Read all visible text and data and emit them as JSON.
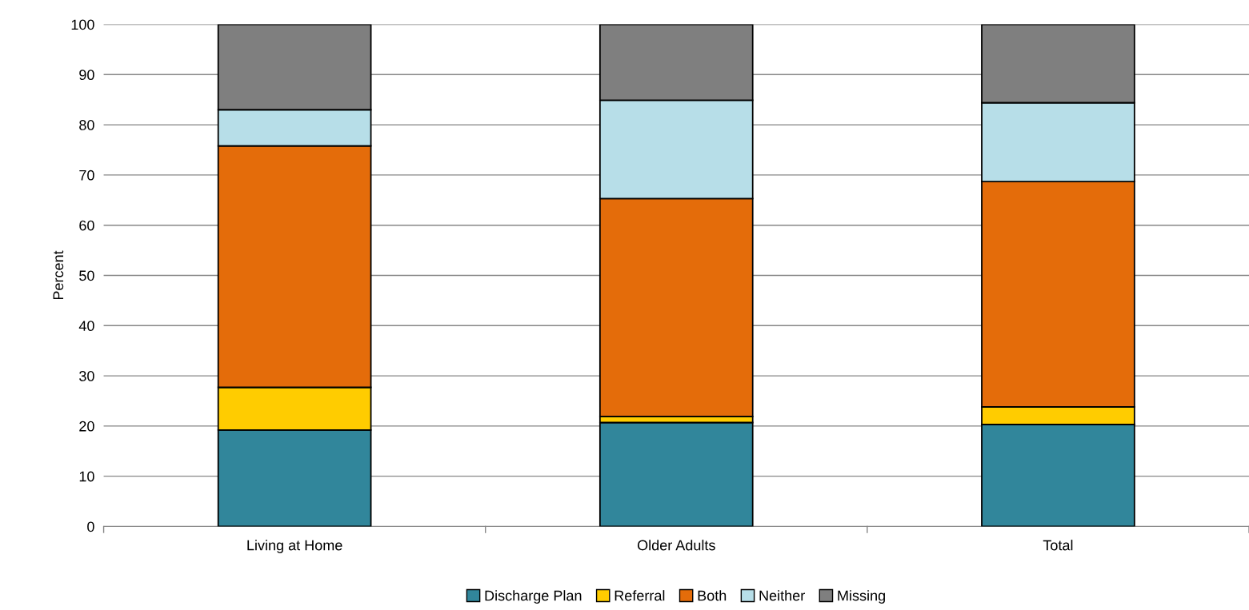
{
  "chart_data": {
    "type": "bar",
    "stacked": true,
    "ylabel": "Percent",
    "categories": [
      "Living at Home",
      "Older Adults",
      "Total"
    ],
    "series": [
      {
        "name": "Discharge Plan",
        "color": "#31869b",
        "values": [
          19.2,
          20.7,
          20.3
        ]
      },
      {
        "name": "Referral",
        "color": "#ffcc00",
        "values": [
          8.5,
          1.2,
          3.5
        ]
      },
      {
        "name": "Both",
        "color": "#e46c0a",
        "values": [
          48.1,
          43.4,
          44.9
        ]
      },
      {
        "name": "Neither",
        "color": "#b7dee8",
        "values": [
          7.2,
          19.6,
          15.7
        ]
      },
      {
        "name": "Missing",
        "color": "#7f7f7f",
        "values": [
          17.0,
          15.1,
          15.6
        ]
      }
    ],
    "ylim": [
      0,
      100
    ],
    "yticks": [
      0,
      10,
      20,
      30,
      40,
      50,
      60,
      70,
      80,
      90,
      100
    ],
    "grid": "y",
    "legend": "bottom"
  }
}
